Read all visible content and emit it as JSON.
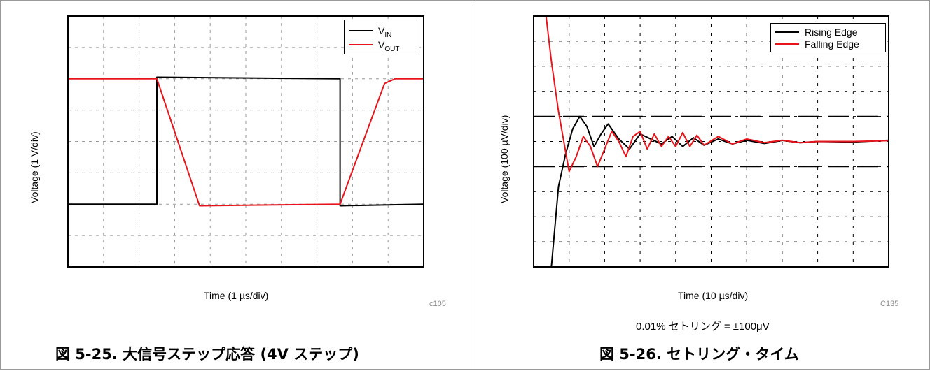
{
  "figures": [
    {
      "caption": "図 5-25. 大信号ステップ応答 (4V ステップ)",
      "code": "c105"
    },
    {
      "caption": "図 5-26. セトリング・タイム",
      "code": "C135",
      "note": "0.01% セトリング = ±100μV"
    }
  ],
  "chart_data": [
    {
      "type": "line",
      "xlabel": "Time (1 µs/div)",
      "ylabel": "Voltage (1 V/div)",
      "xlim": [
        0,
        10
      ],
      "ylim": [
        -4,
        4
      ],
      "grid": true,
      "legend_position": "top-right",
      "series": [
        {
          "name": "VIN",
          "name_main": "V",
          "name_sub": "IN",
          "color": "#000000",
          "x": [
            0,
            2.5,
            2.5,
            7.65,
            7.65,
            10
          ],
          "y": [
            -2,
            -2,
            2.05,
            2,
            -2.05,
            -2
          ]
        },
        {
          "name": "VOUT",
          "name_main": "V",
          "name_sub": "OUT",
          "color": "#e8141b",
          "x": [
            0,
            2.5,
            3.7,
            7.65,
            8.9,
            9.2,
            10
          ],
          "y": [
            2,
            2,
            -2.05,
            -2,
            1.85,
            2,
            2
          ]
        }
      ]
    },
    {
      "type": "line",
      "xlabel": "Time (10 µs/div)",
      "ylabel": "Voltage (100 µV/div)",
      "xlim": [
        0,
        10
      ],
      "ylim": [
        -5,
        5
      ],
      "grid": true,
      "legend_position": "top-right",
      "settling_band": [
        -1,
        1
      ],
      "series": [
        {
          "name": "Rising Edge",
          "color": "#000000",
          "x": [
            0.5,
            0.7,
            0.9,
            1.1,
            1.3,
            1.5,
            1.7,
            1.9,
            2.1,
            2.4,
            2.7,
            3.0,
            3.3,
            3.6,
            3.9,
            4.2,
            4.5,
            4.8,
            5.2,
            5.6,
            6.0,
            6.5,
            7.0,
            7.5,
            8.0,
            9.0,
            10.0
          ],
          "y": [
            -5,
            -1.8,
            -0.5,
            0.5,
            1.0,
            0.6,
            -0.2,
            0.3,
            0.7,
            0.1,
            -0.3,
            0.3,
            0.1,
            -0.1,
            0.2,
            -0.2,
            0.15,
            -0.15,
            0.1,
            -0.1,
            0.05,
            -0.08,
            0.04,
            -0.05,
            0,
            -0.02,
            0.05
          ]
        },
        {
          "name": "Falling Edge",
          "color": "#e8141b",
          "x": [
            0.35,
            0.5,
            0.7,
            0.9,
            1.0,
            1.2,
            1.4,
            1.6,
            1.8,
            2.0,
            2.2,
            2.4,
            2.6,
            2.8,
            3.0,
            3.2,
            3.4,
            3.6,
            3.8,
            4.0,
            4.2,
            4.4,
            4.6,
            4.8,
            5.2,
            5.6,
            6.0,
            6.5,
            7.0,
            7.5,
            8.0,
            9.0,
            10.0
          ],
          "y": [
            5,
            3.2,
            1.2,
            -0.4,
            -1.2,
            -0.6,
            0.2,
            -0.2,
            -1.0,
            -0.3,
            0.4,
            0.0,
            -0.6,
            0.2,
            0.4,
            -0.3,
            0.3,
            -0.2,
            0.2,
            -0.2,
            0.35,
            -0.2,
            0.25,
            -0.15,
            0.2,
            -0.1,
            0.1,
            -0.05,
            0.05,
            -0.05,
            0.0,
            0.0,
            0.03
          ]
        }
      ]
    }
  ]
}
